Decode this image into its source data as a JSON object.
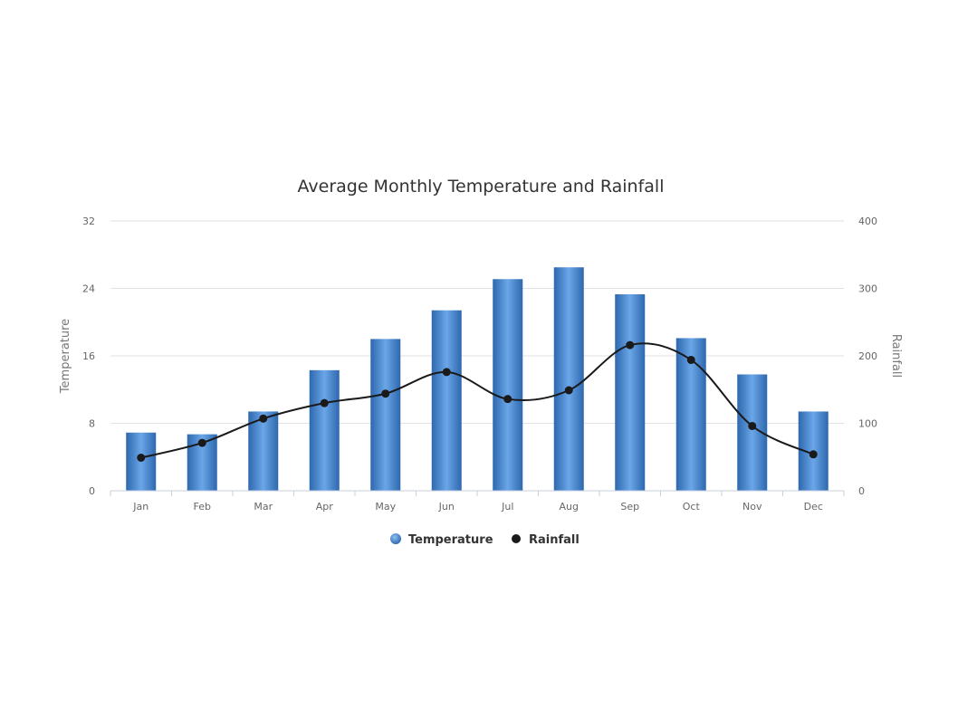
{
  "chart_data": {
    "type": "bar",
    "title": "Average Monthly Temperature and Rainfall",
    "categories": [
      "Jan",
      "Feb",
      "Mar",
      "Apr",
      "May",
      "Jun",
      "Jul",
      "Aug",
      "Sep",
      "Oct",
      "Nov",
      "Dec"
    ],
    "series": [
      {
        "name": "Temperature",
        "type": "bar",
        "axis": "left",
        "values": [
          6.9,
          6.7,
          9.4,
          14.3,
          18.0,
          21.4,
          25.1,
          26.5,
          23.3,
          18.1,
          13.8,
          9.4
        ]
      },
      {
        "name": "Rainfall",
        "type": "line",
        "axis": "right",
        "values": [
          49,
          71,
          107,
          130,
          144,
          176,
          136,
          149,
          216,
          194,
          96,
          54
        ]
      }
    ],
    "yAxisLeft": {
      "title": "Temperature",
      "ylim": [
        0,
        32
      ],
      "ticks": [
        "0",
        "8",
        "16",
        "24",
        "32"
      ]
    },
    "yAxisRight": {
      "title": "Rainfall",
      "ylim": [
        0,
        400
      ],
      "ticks": [
        "0",
        "100",
        "200",
        "300",
        "400"
      ]
    },
    "grid": true,
    "legend_position": "bottom-center",
    "colors": {
      "bar": "#2f6bb1",
      "bar_light": "#6aa5e6",
      "line": "#1a1a1a",
      "grid": "#e2e2e2"
    }
  }
}
